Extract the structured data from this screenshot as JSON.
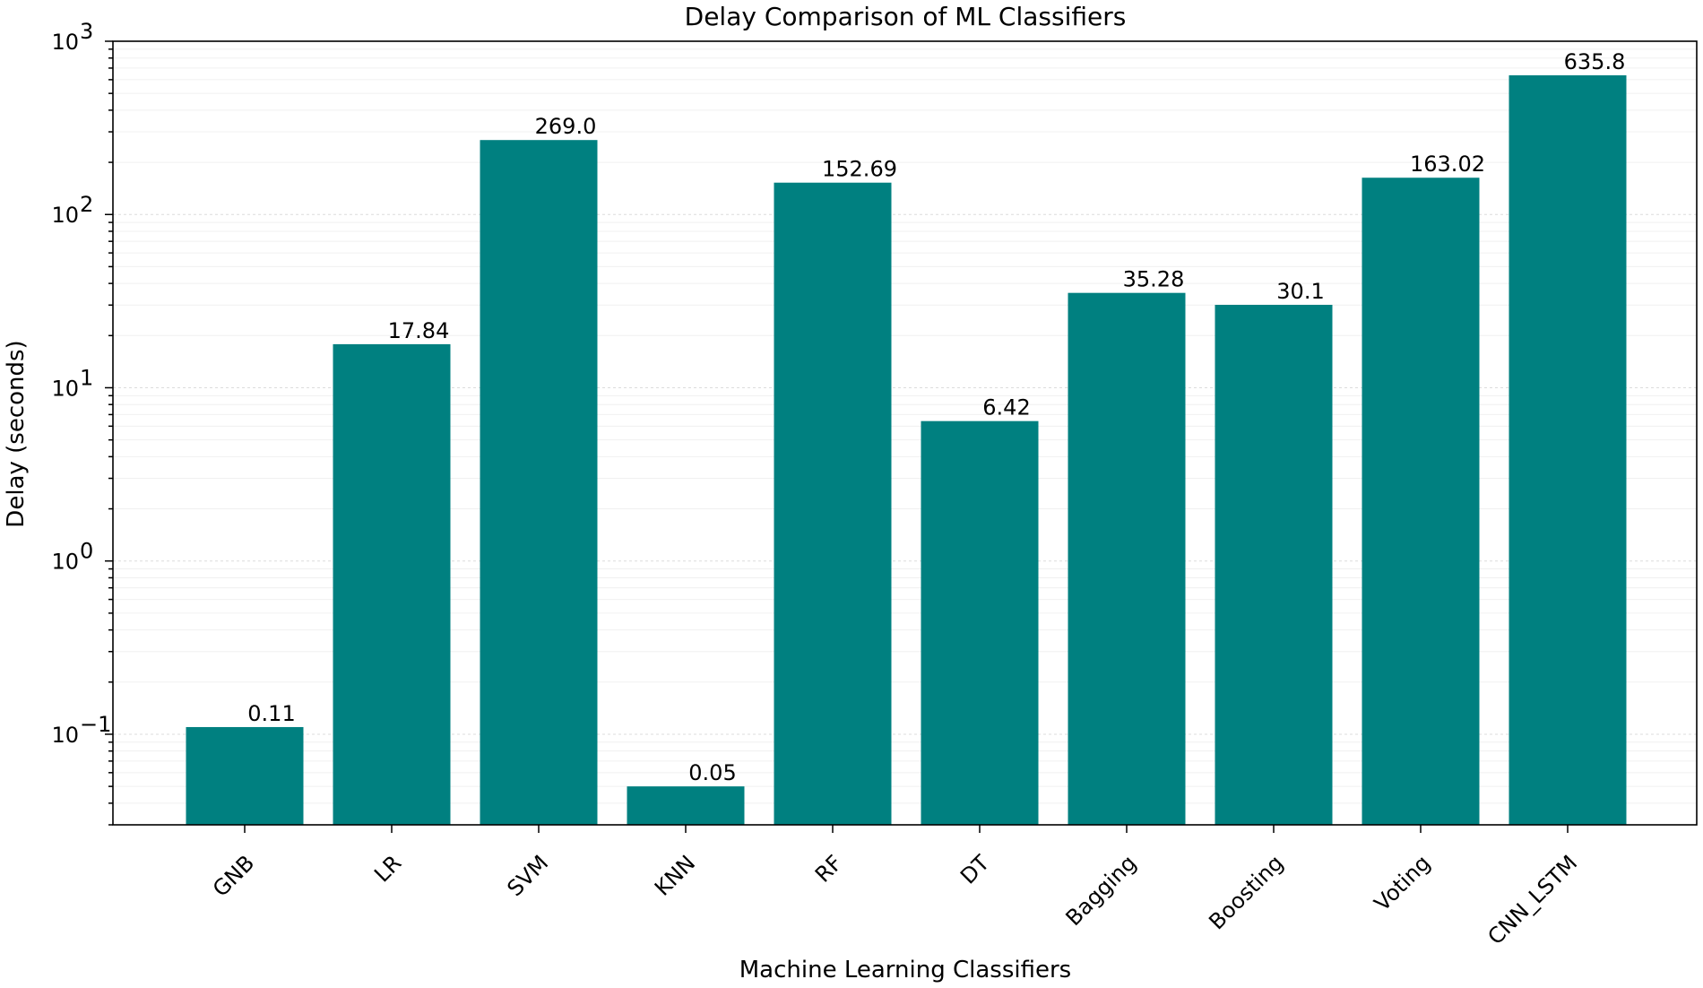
{
  "chart_data": {
    "type": "bar",
    "title": "Delay Comparison of ML Classifiers",
    "xlabel": "Machine Learning Classifiers",
    "ylabel": "Delay (seconds)",
    "yscale": "log",
    "ylim": [
      0.03,
      1000
    ],
    "yticks": [
      {
        "value": 0.1,
        "base": "10",
        "exp": "−1"
      },
      {
        "value": 1,
        "base": "10",
        "exp": "0"
      },
      {
        "value": 10,
        "base": "10",
        "exp": "1"
      },
      {
        "value": 100,
        "base": "10",
        "exp": "2"
      },
      {
        "value": 1000,
        "base": "10",
        "exp": "3"
      }
    ],
    "categories": [
      "GNB",
      "LR",
      "SVM",
      "KNN",
      "RF",
      "DT",
      "Bagging",
      "Boosting",
      "Voting",
      "CNN_LSTM"
    ],
    "values": [
      0.11,
      17.84,
      269.0,
      0.05,
      152.69,
      6.42,
      35.28,
      30.1,
      163.02,
      635.8
    ],
    "value_labels": [
      "0.11",
      "17.84",
      "269.0",
      "0.05",
      "152.69",
      "6.42",
      "35.28",
      "30.1",
      "163.02",
      "635.8"
    ],
    "bar_color": "#008080",
    "grid": true
  }
}
